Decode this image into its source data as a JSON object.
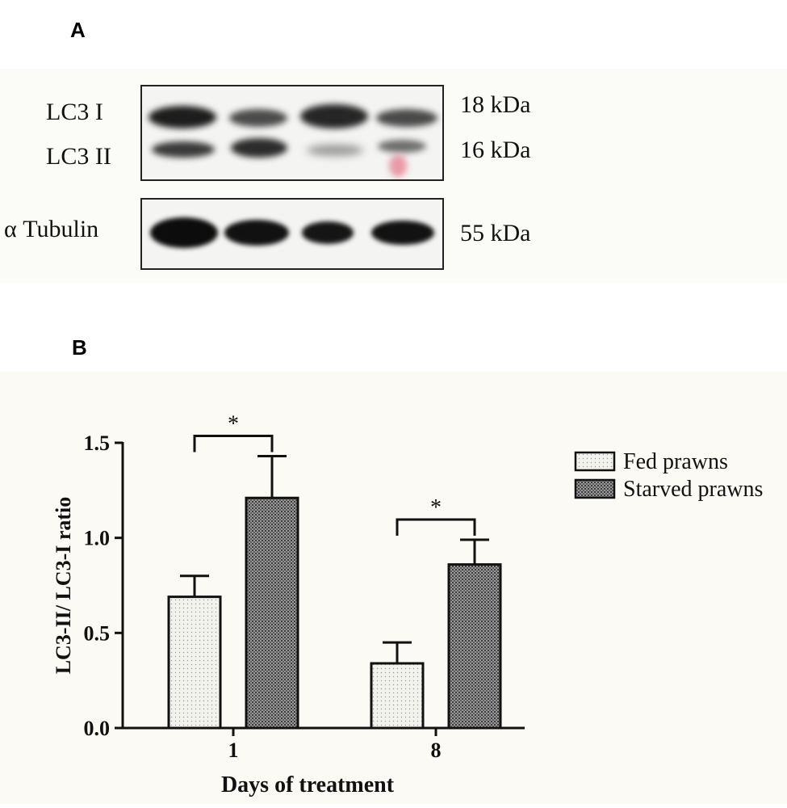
{
  "panels": {
    "a_label": "A",
    "b_label": "B"
  },
  "blot": {
    "lc3_i": "LC3 I",
    "lc3_ii": "LC3 II",
    "tubulin": "α Tubulin",
    "kda_18": "18 kDa",
    "kda_16": "16 kDa",
    "kda_55": "55 kDa"
  },
  "chart_data": {
    "type": "bar",
    "categories": [
      "1",
      "8"
    ],
    "series": [
      {
        "name": "Fed prawns",
        "values": [
          0.69,
          0.34
        ],
        "errors": [
          0.11,
          0.11
        ]
      },
      {
        "name": "Starved prawns",
        "values": [
          1.21,
          0.86
        ],
        "errors": [
          0.22,
          0.13
        ]
      }
    ],
    "xlabel": "Days of treatment",
    "ylabel": "LC3-II/ LC3-I ratio",
    "ylim": [
      0,
      1.5
    ],
    "yticks": [
      "0.0",
      "0.5",
      "1.0",
      "1.5"
    ],
    "significance": [
      "*",
      "*"
    ],
    "legend": "right",
    "grid": false,
    "colors": {
      "fed": "#f1f1ec",
      "starved": "#8a8a8a",
      "axis": "#111111"
    }
  }
}
